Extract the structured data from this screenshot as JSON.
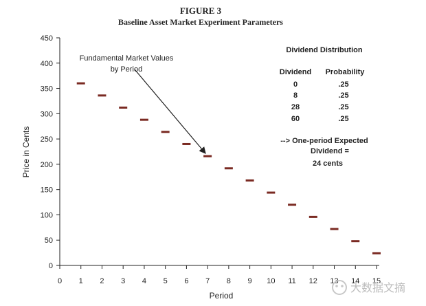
{
  "figure_label": "FIGURE 3",
  "chart_data": {
    "type": "scatter",
    "title": "Baseline Asset Market Experiment Parameters",
    "xlabel": "Period",
    "ylabel": "Price in Cents",
    "xlim": [
      0,
      15
    ],
    "ylim": [
      0,
      450
    ],
    "x_ticks": [
      "0",
      "1",
      "2",
      "3",
      "4",
      "5",
      "6",
      "7",
      "8",
      "9",
      "10",
      "11",
      "12",
      "13",
      "14",
      "15"
    ],
    "y_ticks": [
      "0",
      "50",
      "100",
      "150",
      "200",
      "250",
      "300",
      "350",
      "400",
      "450"
    ],
    "series": [
      {
        "name": "Fundamental Market Values by Period",
        "x": [
          1,
          2,
          3,
          4,
          5,
          6,
          7,
          8,
          9,
          10,
          11,
          12,
          13,
          14,
          15
        ],
        "y": [
          360,
          336,
          312,
          288,
          264,
          240,
          216,
          192,
          168,
          144,
          120,
          96,
          72,
          48,
          24
        ]
      }
    ],
    "annotation": {
      "line1": "Fundamental Market Values",
      "line2": "by Period",
      "arrow_to": {
        "x": 7,
        "y": 216
      }
    },
    "dividend_table": {
      "title": "Dividend Distribution",
      "headers": [
        "Dividend",
        "Probability"
      ],
      "rows": [
        [
          "0",
          ".25"
        ],
        [
          "8",
          ".25"
        ],
        [
          "28",
          ".25"
        ],
        [
          "60",
          ".25"
        ]
      ]
    },
    "expected_note": {
      "line1": "--> One-period Expected",
      "line2": "Dividend =",
      "line3": "24 cents"
    },
    "grid": false,
    "marker_color": "#7a2a22"
  },
  "watermark": "大数据文摘"
}
